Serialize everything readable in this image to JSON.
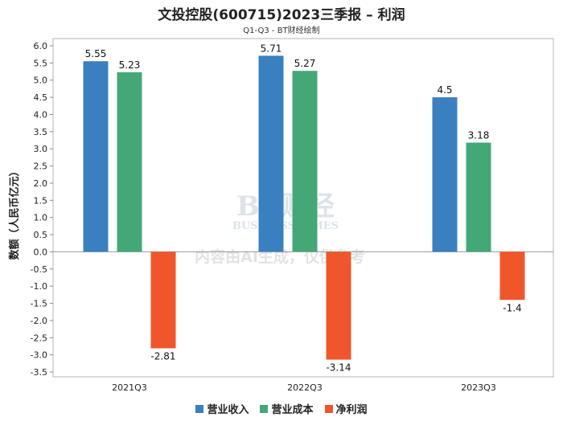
{
  "chart_data": {
    "type": "bar",
    "title": "文投控股(600715)2023三季报 – 利润",
    "subtitle": "Q1-Q3 - BT财经绘制",
    "ylabel": "数额（人民币亿元）",
    "xlabel": "",
    "categories": [
      "2021Q3",
      "2022Q3",
      "2023Q3"
    ],
    "ylim": [
      -3.5,
      6.0
    ],
    "yticks": [
      6.0,
      5.5,
      5.0,
      4.5,
      4.0,
      3.5,
      3.0,
      2.5,
      2.0,
      1.5,
      1.0,
      0.5,
      0.0,
      -0.5,
      -1.0,
      -1.5,
      -2.0,
      -2.5,
      -3.0,
      -3.5
    ],
    "series": [
      {
        "name": "营业收入",
        "color": "#3a80c0",
        "values": [
          5.55,
          5.71,
          4.5
        ],
        "labels": [
          "5.55",
          "5.71",
          "4.5"
        ]
      },
      {
        "name": "营业成本",
        "color": "#43a875",
        "values": [
          5.23,
          5.27,
          3.18
        ],
        "labels": [
          "5.23",
          "5.27",
          "3.18"
        ]
      },
      {
        "name": "净利润",
        "color": "#f0562b",
        "values": [
          -2.81,
          -3.14,
          -1.4
        ],
        "labels": [
          "-2.81",
          "-3.14",
          "-1.4"
        ]
      }
    ],
    "watermark": {
      "brand": "BT财经",
      "brand_en": "BUSINESS TIMES",
      "notice": "内容由AI生成，仅供参考"
    },
    "grid": false,
    "legend_position": "bottom"
  }
}
